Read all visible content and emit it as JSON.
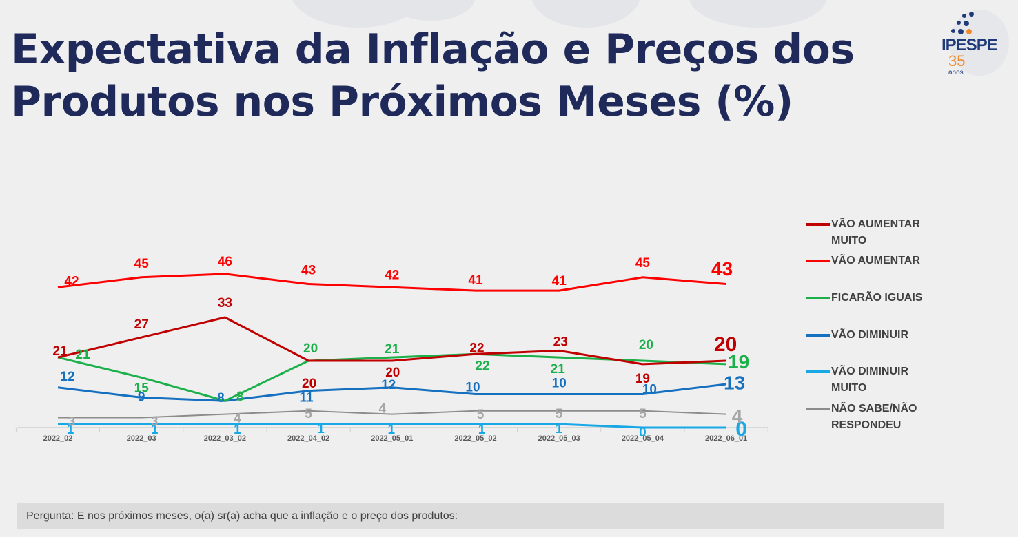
{
  "title": {
    "line1": "Expectativa da Inflação e Preços dos",
    "line2": "Produtos nos Próximos Meses (%)"
  },
  "logo": {
    "name": "IPESPE",
    "years": "35",
    "suffix": "anos"
  },
  "footer": {
    "question": "Pergunta:  E nos próximos meses, o(a) sr(a) acha que a inflação e o preço dos produtos:"
  },
  "chart_data": {
    "type": "line",
    "title": "Expectativa da Inflação e Preços dos Produtos nos Próximos Meses (%)",
    "xlabel": "",
    "ylabel": "",
    "ylim": [
      0,
      50
    ],
    "grid": false,
    "legend_position": "right",
    "x": [
      "2022_02",
      "2022_03",
      "2022_03_02",
      "2022_04_02",
      "2022_05_01",
      "2022_05_02",
      "2022_05_03",
      "2022_05_04",
      "2022_06_01"
    ],
    "series": [
      {
        "name": "VÃO AUMENTAR MUITO",
        "label_lines": [
          "VÃO AUMENTAR",
          "MUITO"
        ],
        "color": "#c00000",
        "values": [
          21,
          27,
          33,
          20,
          20,
          22,
          23,
          19,
          20
        ]
      },
      {
        "name": "VÃO AUMENTAR",
        "label_lines": [
          "VÃO AUMENTAR"
        ],
        "color": "#ff0000",
        "values": [
          42,
          45,
          46,
          43,
          42,
          41,
          41,
          45,
          43
        ]
      },
      {
        "name": "FICARÃO IGUAIS",
        "label_lines": [
          "FICARÃO IGUAIS"
        ],
        "color": "#1bb04a",
        "values": [
          21,
          15,
          8,
          20,
          21,
          22,
          21,
          20,
          19
        ]
      },
      {
        "name": "VÃO DIMINUIR",
        "label_lines": [
          "VÃO DIMINUIR"
        ],
        "color": "#1570c0",
        "values": [
          12,
          9,
          8,
          11,
          12,
          10,
          10,
          10,
          13
        ]
      },
      {
        "name": "VÃO DIMINUIR MUITO",
        "label_lines": [
          "VÃO DIMINUIR",
          "MUITO"
        ],
        "color": "#19a8e6",
        "values": [
          1,
          1,
          1,
          1,
          1,
          1,
          1,
          0,
          0
        ]
      },
      {
        "name": "NÃO SABE/NÃO RESPONDEU",
        "label_lines": [
          "NÃO SABE/NÃO",
          "RESPONDEU"
        ],
        "color": "#8c8c8c",
        "label_color": "#a6a6a6",
        "values": [
          3,
          3,
          4,
          5,
          4,
          5,
          5,
          5,
          4
        ]
      }
    ]
  }
}
